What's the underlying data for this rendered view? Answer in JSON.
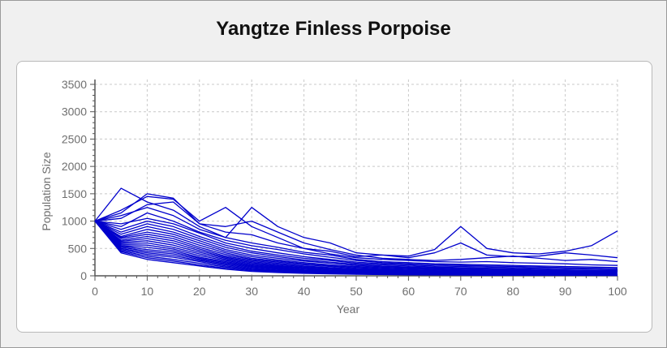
{
  "title": "Yangtze Finless Porpoise",
  "chart_data": {
    "type": "line",
    "title": "Yangtze Finless Porpoise",
    "xlabel": "Year",
    "ylabel": "Population Size",
    "xlim": [
      0,
      100
    ],
    "ylim": [
      0,
      3500
    ],
    "x_ticks": [
      0,
      10,
      20,
      30,
      40,
      50,
      60,
      70,
      80,
      90,
      100
    ],
    "y_ticks": [
      0,
      500,
      1000,
      1500,
      2000,
      2500,
      3000,
      3500
    ],
    "grid": true,
    "line_color": "#0000cc",
    "x": [
      0,
      5,
      10,
      15,
      20,
      25,
      30,
      35,
      40,
      45,
      50,
      55,
      60,
      65,
      70,
      75,
      80,
      85,
      90,
      95,
      100
    ],
    "series": [
      {
        "values": [
          1000,
          1600,
          1350,
          1200,
          900,
          700,
          1250,
          900,
          700,
          600,
          420,
          380,
          360,
          480,
          900,
          500,
          420,
          400,
          450,
          550,
          820
        ]
      },
      {
        "values": [
          1000,
          1200,
          1450,
          1400,
          1000,
          1250,
          900,
          700,
          500,
          450,
          350,
          380,
          330,
          420,
          600,
          380,
          350,
          360,
          420,
          380,
          330
        ]
      },
      {
        "values": [
          1000,
          1150,
          1500,
          1420,
          950,
          900,
          1000,
          800,
          600,
          480,
          380,
          320,
          300,
          280,
          300,
          330,
          360,
          320,
          280,
          300,
          260
        ]
      },
      {
        "values": [
          1000,
          1050,
          1300,
          1350,
          950,
          800,
          750,
          600,
          500,
          400,
          330,
          300,
          280,
          260,
          250,
          260,
          240,
          230,
          220,
          200,
          190
        ]
      },
      {
        "values": [
          1000,
          1100,
          1250,
          1100,
          850,
          700,
          600,
          520,
          430,
          380,
          300,
          260,
          240,
          220,
          210,
          200,
          190,
          180,
          170,
          160,
          150
        ]
      },
      {
        "values": [
          1000,
          900,
          1150,
          1000,
          800,
          650,
          550,
          480,
          400,
          340,
          280,
          240,
          220,
          200,
          190,
          180,
          170,
          160,
          150,
          140,
          130
        ]
      },
      {
        "values": [
          1000,
          950,
          1050,
          950,
          780,
          600,
          500,
          420,
          350,
          300,
          250,
          220,
          200,
          180,
          170,
          160,
          150,
          140,
          130,
          120,
          110
        ]
      },
      {
        "values": [
          1000,
          850,
          1000,
          900,
          720,
          560,
          450,
          380,
          320,
          280,
          230,
          200,
          180,
          160,
          150,
          140,
          130,
          120,
          110,
          100,
          95
        ]
      },
      {
        "values": [
          1000,
          800,
          950,
          850,
          680,
          520,
          420,
          350,
          290,
          250,
          210,
          180,
          160,
          145,
          135,
          125,
          115,
          105,
          95,
          90,
          85
        ]
      },
      {
        "values": [
          1000,
          760,
          900,
          800,
          640,
          480,
          380,
          320,
          270,
          230,
          190,
          165,
          150,
          135,
          125,
          115,
          105,
          95,
          90,
          85,
          80
        ]
      },
      {
        "values": [
          1000,
          720,
          850,
          760,
          600,
          450,
          350,
          290,
          240,
          200,
          170,
          150,
          135,
          120,
          110,
          100,
          95,
          90,
          85,
          80,
          75
        ]
      },
      {
        "values": [
          1000,
          700,
          800,
          720,
          560,
          420,
          320,
          270,
          220,
          185,
          155,
          135,
          120,
          110,
          100,
          90,
          85,
          80,
          75,
          70,
          65
        ]
      },
      {
        "values": [
          1000,
          680,
          760,
          680,
          520,
          390,
          300,
          250,
          200,
          170,
          140,
          120,
          105,
          95,
          90,
          85,
          80,
          75,
          70,
          65,
          60
        ]
      },
      {
        "values": [
          1000,
          650,
          720,
          640,
          490,
          360,
          280,
          230,
          180,
          150,
          125,
          110,
          95,
          85,
          80,
          75,
          70,
          65,
          60,
          55,
          50
        ]
      },
      {
        "values": [
          1000,
          630,
          680,
          600,
          460,
          340,
          260,
          210,
          165,
          140,
          115,
          100,
          90,
          80,
          75,
          70,
          65,
          60,
          55,
          50,
          45
        ]
      },
      {
        "values": [
          1000,
          610,
          640,
          560,
          430,
          320,
          240,
          190,
          150,
          125,
          105,
          90,
          80,
          70,
          65,
          60,
          55,
          50,
          45,
          40,
          38
        ]
      },
      {
        "values": [
          1000,
          590,
          600,
          520,
          400,
          300,
          220,
          175,
          140,
          115,
          95,
          80,
          70,
          60,
          55,
          50,
          45,
          40,
          38,
          35,
          32
        ]
      },
      {
        "values": [
          1000,
          570,
          560,
          490,
          370,
          280,
          200,
          160,
          125,
          100,
          85,
          70,
          60,
          55,
          50,
          45,
          40,
          35,
          32,
          30,
          28
        ]
      },
      {
        "values": [
          1000,
          550,
          520,
          460,
          340,
          260,
          185,
          145,
          110,
          90,
          75,
          62,
          55,
          48,
          44,
          40,
          36,
          32,
          30,
          28,
          25
        ]
      },
      {
        "values": [
          1000,
          540,
          480,
          430,
          320,
          240,
          170,
          130,
          100,
          80,
          65,
          55,
          48,
          42,
          38,
          35,
          32,
          30,
          28,
          25,
          22
        ]
      },
      {
        "values": [
          1000,
          520,
          450,
          400,
          300,
          220,
          155,
          120,
          90,
          72,
          58,
          50,
          44,
          38,
          35,
          32,
          30,
          27,
          25,
          22,
          20
        ]
      },
      {
        "values": [
          1000,
          500,
          420,
          370,
          280,
          200,
          140,
          105,
          80,
          65,
          52,
          44,
          38,
          34,
          30,
          28,
          26,
          24,
          22,
          20,
          18
        ]
      },
      {
        "values": [
          1000,
          480,
          390,
          340,
          260,
          180,
          125,
          95,
          72,
          58,
          46,
          38,
          34,
          30,
          27,
          25,
          23,
          21,
          19,
          17,
          15
        ]
      },
      {
        "values": [
          1000,
          460,
          360,
          300,
          230,
          160,
          110,
          85,
          64,
          50,
          40,
          34,
          30,
          26,
          24,
          22,
          20,
          18,
          16,
          14,
          12
        ]
      },
      {
        "values": [
          1000,
          440,
          330,
          270,
          200,
          140,
          95,
          72,
          55,
          42,
          34,
          28,
          24,
          20,
          18,
          16,
          14,
          12,
          10,
          9,
          8
        ]
      },
      {
        "values": [
          1000,
          420,
          300,
          240,
          180,
          120,
          80,
          60,
          45,
          35,
          28,
          22,
          18,
          15,
          13,
          11,
          10,
          9,
          8,
          7,
          6
        ]
      }
    ]
  }
}
